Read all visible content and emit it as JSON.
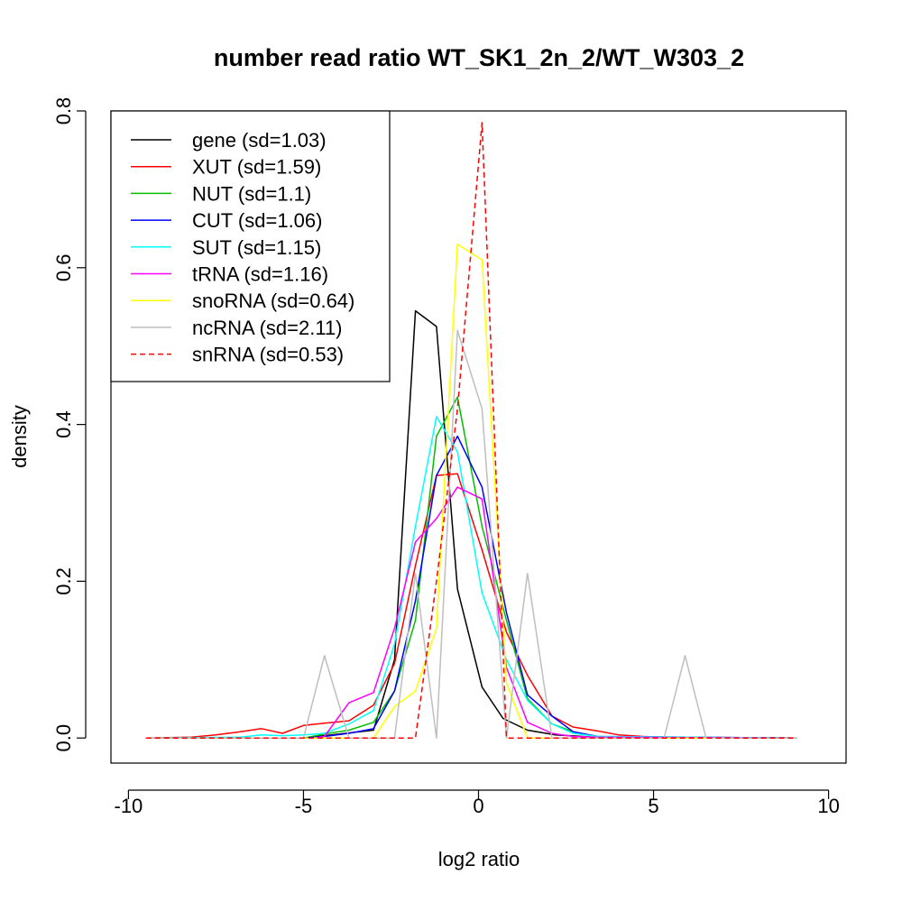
{
  "chart_data": {
    "type": "line",
    "title": "number read ratio WT_SK1_2n_2/WT_W303_2",
    "xlabel": "log2 ratio",
    "ylabel": "density",
    "xlim": [
      -10.5,
      10.5
    ],
    "ylim": [
      -0.032,
      0.8
    ],
    "x_ticks": [
      -10,
      -5,
      0,
      5,
      10
    ],
    "x_tick_labels": [
      "-10",
      "-5",
      "0",
      "5",
      "10"
    ],
    "y_ticks": [
      0.0,
      0.2,
      0.4,
      0.6,
      0.8
    ],
    "y_tick_labels": [
      "0.0",
      "0.2",
      "0.4",
      "0.6",
      "0.8"
    ],
    "grid": false,
    "legend_position": "top-left",
    "series": [
      {
        "name": "gene (sd=1.03)",
        "color": "#000000",
        "dash": "solid",
        "x": [
          -9.5,
          -5,
          -3,
          -2.4,
          -1.8,
          -1.2,
          -0.6,
          0.1,
          0.7,
          1.4,
          2.2,
          3.3,
          9.1
        ],
        "y": [
          0,
          0,
          0.01,
          0.1,
          0.545,
          0.525,
          0.19,
          0.065,
          0.025,
          0.01,
          0.004,
          0.001,
          0
        ]
      },
      {
        "name": "XUT (sd=1.59)",
        "color": "#ff0000",
        "dash": "solid",
        "x": [
          -9.5,
          -8.2,
          -7.5,
          -6.8,
          -6.2,
          -5.6,
          -5.0,
          -4.4,
          -3.7,
          -3.0,
          -2.4,
          -1.8,
          -1.2,
          -0.6,
          0.1,
          0.8,
          1.4,
          2.1,
          2.7,
          3.4,
          4.0,
          4.7,
          5.3,
          6.0,
          9.1
        ],
        "y": [
          0,
          0.001,
          0.004,
          0.008,
          0.012,
          0.006,
          0.016,
          0.019,
          0.022,
          0.042,
          0.095,
          0.22,
          0.335,
          0.337,
          0.24,
          0.135,
          0.08,
          0.028,
          0.014,
          0.009,
          0.004,
          0.002,
          0.001,
          0.001,
          0
        ]
      },
      {
        "name": "NUT (sd=1.1)",
        "color": "#00bf00",
        "dash": "solid",
        "x": [
          -9.5,
          -5,
          -4.4,
          -3.7,
          -3.0,
          -2.4,
          -1.8,
          -1.2,
          -0.6,
          0.1,
          0.8,
          1.4,
          2.1,
          2.7,
          3.4,
          4.0,
          9.1
        ],
        "y": [
          0,
          0,
          0.005,
          0.01,
          0.02,
          0.06,
          0.15,
          0.385,
          0.435,
          0.27,
          0.15,
          0.05,
          0.018,
          0.008,
          0.002,
          0.001,
          0
        ]
      },
      {
        "name": "CUT (sd=1.06)",
        "color": "#0000ff",
        "dash": "solid",
        "x": [
          -9.5,
          -5,
          -4.4,
          -3.7,
          -3.0,
          -2.4,
          -1.8,
          -1.2,
          -0.6,
          0.1,
          0.8,
          1.4,
          2.1,
          2.7,
          3.4,
          9.1
        ],
        "y": [
          0,
          0,
          0.002,
          0.006,
          0.012,
          0.06,
          0.175,
          0.335,
          0.385,
          0.32,
          0.16,
          0.055,
          0.028,
          0.008,
          0.002,
          0
        ]
      },
      {
        "name": "SUT (sd=1.15)",
        "color": "#00ffff",
        "dash": "solid",
        "x": [
          -9.5,
          -6.8,
          -6.2,
          -5.6,
          -5.0,
          -4.4,
          -3.7,
          -3.0,
          -2.4,
          -1.8,
          -1.2,
          -0.6,
          0.1,
          0.8,
          1.4,
          2.1,
          2.7,
          3.4,
          9.1
        ],
        "y": [
          0,
          0.001,
          0.004,
          0.003,
          0.004,
          0.006,
          0.018,
          0.035,
          0.12,
          0.27,
          0.41,
          0.365,
          0.185,
          0.1,
          0.048,
          0.018,
          0.006,
          0.002,
          0
        ]
      },
      {
        "name": "tRNA (sd=1.16)",
        "color": "#ff00ff",
        "dash": "solid",
        "x": [
          -9.5,
          -4.7,
          -4.4,
          -3.7,
          -3.0,
          -2.4,
          -1.8,
          -1.2,
          -0.6,
          0.1,
          0.8,
          1.4,
          2.1,
          2.7,
          3.4,
          9.1
        ],
        "y": [
          0,
          0,
          0.002,
          0.045,
          0.058,
          0.14,
          0.25,
          0.28,
          0.32,
          0.305,
          0.09,
          0.02,
          0.006,
          0.002,
          0.001,
          0
        ]
      },
      {
        "name": "snoRNA (sd=0.64)",
        "color": "#ffff00",
        "dash": "solid",
        "x": [
          -9.5,
          -3.0,
          -2.4,
          -1.8,
          -1.2,
          -0.6,
          0.1,
          0.8,
          1.4,
          9.1
        ],
        "y": [
          0,
          0,
          0.04,
          0.06,
          0.14,
          0.63,
          0.61,
          0.07,
          0,
          0
        ]
      },
      {
        "name": "ncRNA (sd=2.11)",
        "color": "#bebebe",
        "dash": "solid",
        "x": [
          -9.5,
          -5.0,
          -4.4,
          -3.7,
          -3.0,
          -2.4,
          -1.8,
          -1.2,
          -0.6,
          0.1,
          0.8,
          1.4,
          2.1,
          5.3,
          5.9,
          6.5,
          9.1
        ],
        "y": [
          0,
          0,
          0.105,
          0,
          0,
          0,
          0.21,
          0,
          0.52,
          0.42,
          0,
          0.21,
          0,
          0,
          0.105,
          0,
          0
        ]
      },
      {
        "name": "snRNA (sd=0.53)",
        "color": "#ff0000",
        "dash": "dashed",
        "x": [
          -9.5,
          -1.8,
          -1.2,
          -0.6,
          0.1,
          0.8,
          9.1
        ],
        "y": [
          0,
          0,
          0.2,
          0.42,
          0.785,
          0,
          0
        ]
      }
    ]
  }
}
